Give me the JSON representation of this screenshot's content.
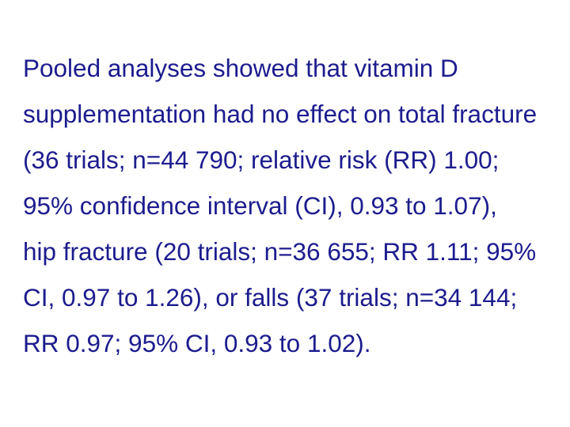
{
  "lines": [
    "Pooled analyses showed that vitamin D",
    "supplementation had no effect on total fracture",
    "(36 trials; n=44 790; relative risk (RR) 1.00;",
    "95% confidence interval (CI), 0.93 to 1.07),",
    "hip fracture (20 trials; n=36 655; RR 1.11; 95%",
    "CI, 0.97 to 1.26), or falls (37 trials; n=34 144;",
    "RR 0.97; 95% CI, 0.93 to 1.02)."
  ]
}
